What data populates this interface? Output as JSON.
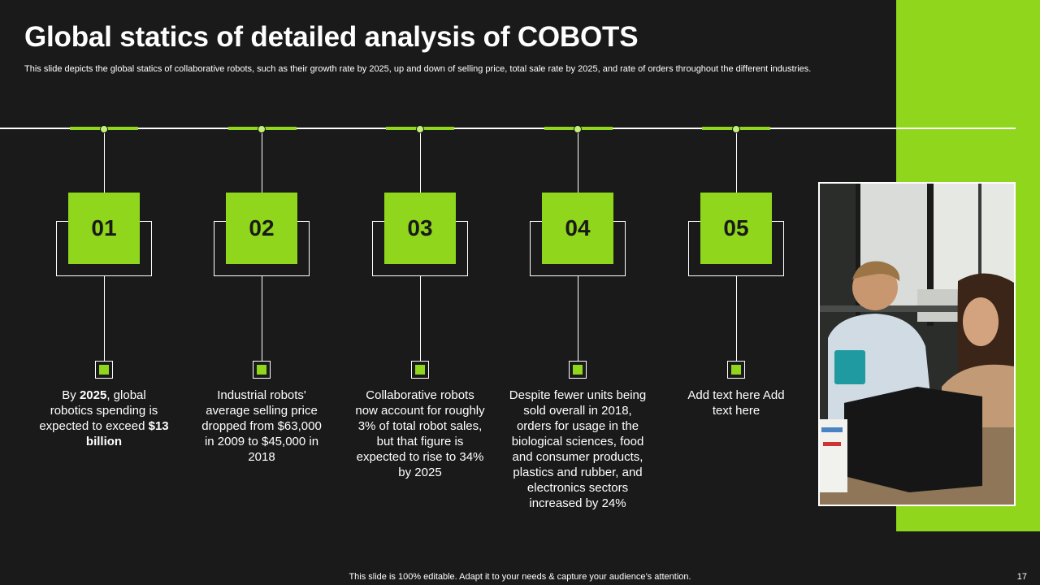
{
  "slide": {
    "title": "Global statics of detailed analysis of COBOTS",
    "subtitle": "This slide depicts the global statics of collaborative robots, such as their growth rate by 2025, up and down of selling price, total sale rate by 2025, and rate of orders throughout the different industries.",
    "footer": "This slide is 100% editable. Adapt it to your needs & capture your audience’s attention.",
    "page_number": "17"
  },
  "colors": {
    "accent": "#8fd61c",
    "background": "#1a1a1a",
    "text": "#ffffff"
  },
  "steps": [
    {
      "number": "01",
      "text_before": "By ",
      "bold1": "2025",
      "text_middle": ", global robotics spending is expected to exceed ",
      "bold2": "$13 billion"
    },
    {
      "number": "02",
      "text": "Industrial robots' average selling price dropped from $63,000 in 2009 to $45,000 in 2018"
    },
    {
      "number": "03",
      "text": "Collaborative robots now account for roughly  3% of total robot sales, but that figure is expected to rise to 34% by 2025"
    },
    {
      "number": "04",
      "text": "Despite fewer units being sold overall in 2018, orders for usage in the biological sciences, food and consumer products, plastics and rubber, and electronics sectors increased by 24%"
    },
    {
      "number": "05",
      "text": "Add text here Add text here"
    }
  ]
}
